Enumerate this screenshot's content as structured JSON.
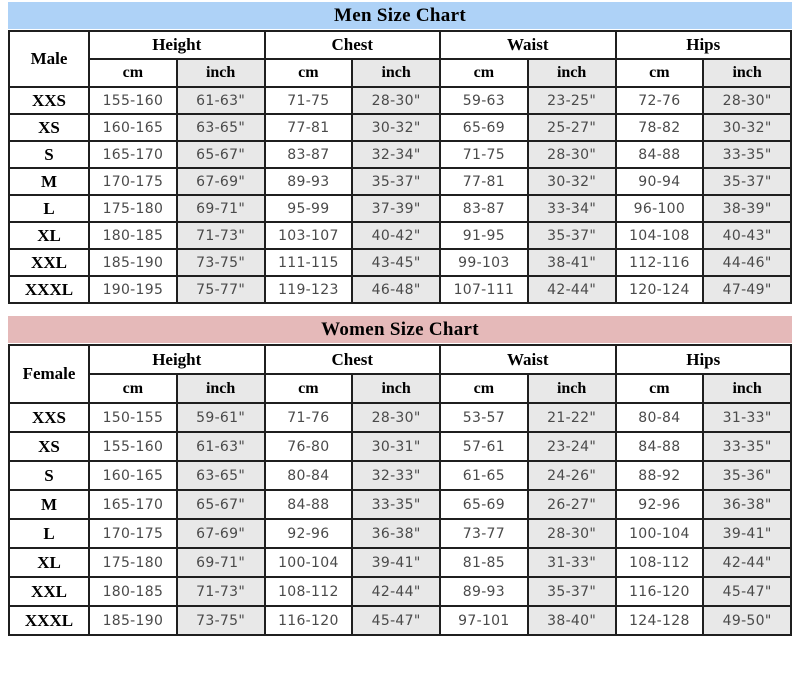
{
  "colors": {
    "men_title_bg": "#aed2f7",
    "women_title_bg": "#e5b9b9",
    "shade_cell_bg": "#e8e8e8",
    "border": "#1f1f1f",
    "data_text": "#4a4a4a"
  },
  "men": {
    "title": "Men Size Chart",
    "size_label": "Male",
    "col_groups": [
      "Height",
      "Chest",
      "Waist",
      "Hips"
    ],
    "units": [
      "cm",
      "inch"
    ],
    "rows": [
      {
        "size": "XXS",
        "values": [
          "155-160",
          "61-63\"",
          "71-75",
          "28-30\"",
          "59-63",
          "23-25\"",
          "72-76",
          "28-30\""
        ]
      },
      {
        "size": "XS",
        "values": [
          "160-165",
          "63-65\"",
          "77-81",
          "30-32\"",
          "65-69",
          "25-27\"",
          "78-82",
          "30-32\""
        ]
      },
      {
        "size": "S",
        "values": [
          "165-170",
          "65-67\"",
          "83-87",
          "32-34\"",
          "71-75",
          "28-30\"",
          "84-88",
          "33-35\""
        ]
      },
      {
        "size": "M",
        "values": [
          "170-175",
          "67-69\"",
          "89-93",
          "35-37\"",
          "77-81",
          "30-32\"",
          "90-94",
          "35-37\""
        ]
      },
      {
        "size": "L",
        "values": [
          "175-180",
          "69-71\"",
          "95-99",
          "37-39\"",
          "83-87",
          "33-34\"",
          "96-100",
          "38-39\""
        ]
      },
      {
        "size": "XL",
        "values": [
          "180-185",
          "71-73\"",
          "103-107",
          "40-42\"",
          "91-95",
          "35-37\"",
          "104-108",
          "40-43\""
        ]
      },
      {
        "size": "XXL",
        "values": [
          "185-190",
          "73-75\"",
          "111-115",
          "43-45\"",
          "99-103",
          "38-41\"",
          "112-116",
          "44-46\""
        ]
      },
      {
        "size": "XXXL",
        "values": [
          "190-195",
          "75-77\"",
          "119-123",
          "46-48\"",
          "107-111",
          "42-44\"",
          "120-124",
          "47-49\""
        ]
      }
    ]
  },
  "women": {
    "title": "Women Size Chart",
    "size_label": "Female",
    "col_groups": [
      "Height",
      "Chest",
      "Waist",
      "Hips"
    ],
    "units": [
      "cm",
      "inch"
    ],
    "rows": [
      {
        "size": "XXS",
        "values": [
          "150-155",
          "59-61\"",
          "71-76",
          "28-30\"",
          "53-57",
          "21-22\"",
          "80-84",
          "31-33\""
        ]
      },
      {
        "size": "XS",
        "values": [
          "155-160",
          "61-63\"",
          "76-80",
          "30-31\"",
          "57-61",
          "23-24\"",
          "84-88",
          "33-35\""
        ]
      },
      {
        "size": "S",
        "values": [
          "160-165",
          "63-65\"",
          "80-84",
          "32-33\"",
          "61-65",
          "24-26\"",
          "88-92",
          "35-36\""
        ]
      },
      {
        "size": "M",
        "values": [
          "165-170",
          "65-67\"",
          "84-88",
          "33-35\"",
          "65-69",
          "26-27\"",
          "92-96",
          "36-38\""
        ]
      },
      {
        "size": "L",
        "values": [
          "170-175",
          "67-69\"",
          "92-96",
          "36-38\"",
          "73-77",
          "28-30\"",
          "100-104",
          "39-41\""
        ]
      },
      {
        "size": "XL",
        "values": [
          "175-180",
          "69-71\"",
          "100-104",
          "39-41\"",
          "81-85",
          "31-33\"",
          "108-112",
          "42-44\""
        ]
      },
      {
        "size": "XXL",
        "values": [
          "180-185",
          "71-73\"",
          "108-112",
          "42-44\"",
          "89-93",
          "35-37\"",
          "116-120",
          "45-47\""
        ]
      },
      {
        "size": "XXXL",
        "values": [
          "185-190",
          "73-75\"",
          "116-120",
          "45-47\"",
          "97-101",
          "38-40\"",
          "124-128",
          "49-50\""
        ]
      }
    ]
  }
}
